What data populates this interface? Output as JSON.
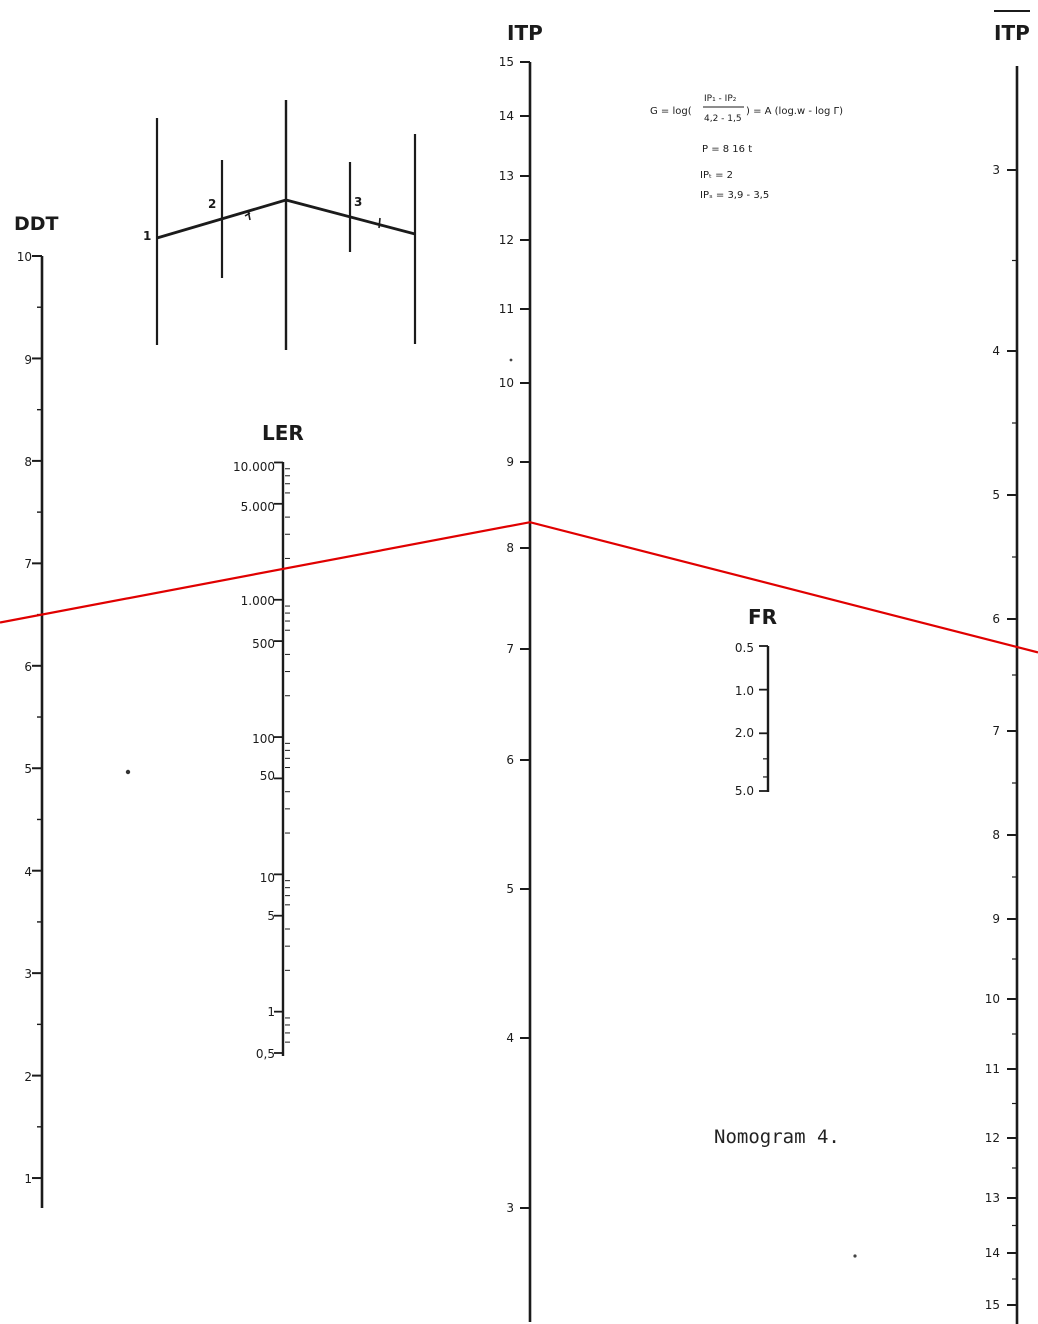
{
  "colors": {
    "ink": "#1b1b1b",
    "paper": "#ffffff",
    "isopleth": "#e00000"
  },
  "scales": {
    "ddt": {
      "title": "DDT",
      "labels": [
        "10",
        "9",
        "8",
        "7",
        "6",
        "5",
        "4",
        "3",
        "2",
        "1"
      ]
    },
    "ler": {
      "title": "LER",
      "labels": [
        "10.000",
        "5.000",
        "1.000",
        "500",
        "100",
        "50",
        "10",
        "5",
        "1",
        "0,5"
      ]
    },
    "itp": {
      "title": "ITP",
      "labels": [
        "15",
        "14",
        "13",
        "12",
        "11",
        "10",
        "9",
        "8",
        "7",
        "6",
        "5",
        "4",
        "3"
      ]
    },
    "fr": {
      "title": "FR",
      "labels": [
        "0.5",
        "1.0",
        "2.0",
        "5.0"
      ]
    },
    "itp_bar": {
      "title": "ITP",
      "labels": [
        "3",
        "4",
        "5",
        "6",
        "7",
        "8",
        "9",
        "10",
        "11",
        "12",
        "13",
        "14",
        "15"
      ]
    }
  },
  "inset": {
    "labels": [
      "1",
      "2",
      "3"
    ]
  },
  "formula": {
    "lead": "G = log(",
    "numerator": "IP₁ - IP₂",
    "denominator": "4,2 - 1,5",
    "tail": ") = A (log.w - log Γ)",
    "line_p": "P = 8 16 t",
    "line_ipt": "IPₜ = 2",
    "line_ips": "IPₛ = 3,9 - 3,5"
  },
  "caption": "Nomogram 4.",
  "isopleth": {
    "ddt_value": 6.5,
    "itp_value": 8.3,
    "itp_bar_value": 6.25
  }
}
